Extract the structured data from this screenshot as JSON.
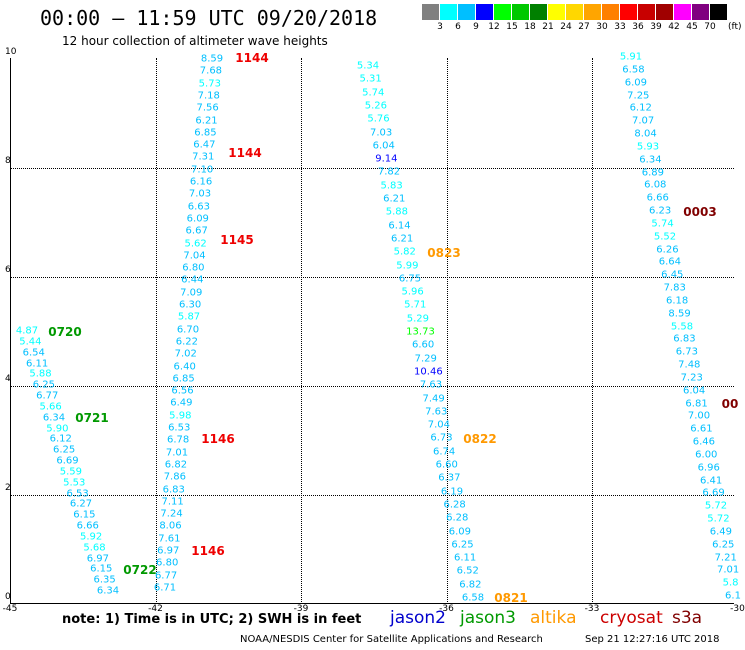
{
  "title": "00:00 – 11:59 UTC 09/20/2018",
  "subtitle": "12 hour collection of altimeter wave heights",
  "color_scale": {
    "labels": [
      "3",
      "6",
      "9",
      "12",
      "15",
      "18",
      "21",
      "24",
      "27",
      "30",
      "33",
      "36",
      "39",
      "42",
      "45",
      "70"
    ],
    "unit": "(ft)",
    "colors": [
      "#808080",
      "#00ffff",
      "#00bfff",
      "#0000ff",
      "#00ff00",
      "#00c800",
      "#008000",
      "#ffff00",
      "#ffd700",
      "#ffa500",
      "#ff8000",
      "#ff0000",
      "#c80000",
      "#a00000",
      "#ff00ff",
      "#800080",
      "#000000"
    ]
  },
  "note": "note: 1) Time is in UTC; 2) SWH is in feet",
  "legend": [
    {
      "name": "jason2",
      "color": "#0000cc"
    },
    {
      "name": "jason3",
      "color": "#009900"
    },
    {
      "name": "altika",
      "color": "#ff9900"
    },
    {
      "name": "cryosat",
      "color": "#cc0000"
    },
    {
      "name": "s3a",
      "color": "#800000"
    }
  ],
  "footer": "NOAA/NESDIS Center for Satellite Applications and Research",
  "footer_time": "Sep 21 12:27:16 UTC 2018",
  "axes": {
    "x_ticks": [
      "-45",
      "-42",
      "-39",
      "-36",
      "-33",
      "-30"
    ],
    "y_ticks": [
      "0",
      "2",
      "4",
      "6",
      "8",
      "10"
    ]
  },
  "tracks": [
    {
      "id": "t1",
      "values": [
        "4.87",
        "5.44",
        "6.54",
        "6.11",
        "5.88",
        "6.25",
        "6.77",
        "5.66",
        "6.34",
        "5.90",
        "6.12",
        "6.25",
        "6.69",
        "5.59",
        "5.53",
        "6.53",
        "6.27",
        "6.15",
        "6.66",
        "5.92",
        "5.68",
        "6.97",
        "6.15",
        "6.35",
        "6.34"
      ],
      "colors": [
        "#00ffff",
        "#00ffff",
        "#00bfff",
        "#00bfff",
        "#00ffff",
        "#00bfff",
        "#00bfff",
        "#00ffff",
        "#00bfff",
        "#00ffff",
        "#00bfff",
        "#00bfff",
        "#00bfff",
        "#00ffff",
        "#00ffff",
        "#00bfff",
        "#00bfff",
        "#00bfff",
        "#00bfff",
        "#00ffff",
        "#00ffff",
        "#00bfff",
        "#00bfff",
        "#00bfff",
        "#00bfff"
      ]
    },
    {
      "id": "t2",
      "values": [
        "8.59",
        "7.68",
        "5.73",
        "7.18",
        "7.56",
        "6.21",
        "6.85",
        "6.47",
        "7.31",
        "7.10",
        "6.16",
        "7.03",
        "6.63",
        "6.09",
        "6.67",
        "5.62",
        "7.04",
        "6.80",
        "6.44",
        "7.09",
        "6.30",
        "5.87",
        "6.70",
        "6.22",
        "7.02",
        "6.40",
        "6.85",
        "6.56",
        "6.49",
        "5.98",
        "6.53",
        "6.78",
        "7.01",
        "6.82",
        "7.86",
        "6.83",
        "7.11",
        "7.24",
        "8.06",
        "7.61",
        "6.97",
        "6.80",
        "6.77",
        "6.71"
      ],
      "colors": [
        "#00bfff",
        "#00bfff",
        "#00ffff",
        "#00bfff",
        "#00bfff",
        "#00bfff",
        "#00bfff",
        "#00bfff",
        "#00bfff",
        "#00bfff",
        "#00bfff",
        "#00bfff",
        "#00bfff",
        "#00bfff",
        "#00bfff",
        "#00ffff",
        "#00bfff",
        "#00bfff",
        "#00bfff",
        "#00bfff",
        "#00bfff",
        "#00ffff",
        "#00bfff",
        "#00bfff",
        "#00bfff",
        "#00bfff",
        "#00bfff",
        "#00bfff",
        "#00bfff",
        "#00ffff",
        "#00bfff",
        "#00bfff",
        "#00bfff",
        "#00bfff",
        "#00bfff",
        "#00bfff",
        "#00bfff",
        "#00bfff",
        "#00bfff",
        "#00bfff",
        "#00bfff",
        "#00bfff",
        "#00bfff",
        "#00bfff"
      ]
    },
    {
      "id": "t3",
      "values": [
        "5.34",
        "5.31",
        "5.74",
        "5.26",
        "5.76",
        "7.03",
        "6.04",
        "9.14",
        "7.82",
        "5.83",
        "6.21",
        "5.88",
        "6.14",
        "6.21",
        "5.82",
        "5.99",
        "6.75",
        "5.96",
        "5.71",
        "5.29",
        "13.73",
        "6.60",
        "7.29",
        "10.46",
        "7.63",
        "7.49",
        "7.63",
        "7.04",
        "6.73",
        "6.74",
        "6.60",
        "6.37",
        "6.19",
        "6.28",
        "6.28",
        "6.09",
        "6.25",
        "6.11",
        "6.52",
        "6.82",
        "6.58"
      ],
      "colors": [
        "#00ffff",
        "#00ffff",
        "#00ffff",
        "#00ffff",
        "#00ffff",
        "#00bfff",
        "#00bfff",
        "#0000ff",
        "#00bfff",
        "#00ffff",
        "#00bfff",
        "#00ffff",
        "#00bfff",
        "#00bfff",
        "#00ffff",
        "#00ffff",
        "#00bfff",
        "#00ffff",
        "#00ffff",
        "#00ffff",
        "#00ff00",
        "#00bfff",
        "#00bfff",
        "#0000ff",
        "#00bfff",
        "#00bfff",
        "#00bfff",
        "#00bfff",
        "#00bfff",
        "#00bfff",
        "#00bfff",
        "#00bfff",
        "#00bfff",
        "#00bfff",
        "#00bfff",
        "#00bfff",
        "#00bfff",
        "#00bfff",
        "#00bfff",
        "#00bfff",
        "#00bfff"
      ]
    },
    {
      "id": "t4",
      "values": [
        "5.91",
        "6.58",
        "6.09",
        "7.25",
        "6.12",
        "7.07",
        "8.04",
        "5.93",
        "6.34",
        "6.89",
        "6.08",
        "6.66",
        "6.23",
        "5.74",
        "5.52",
        "6.26",
        "6.64",
        "6.45",
        "7.83",
        "6.18",
        "8.59",
        "5.58",
        "6.83",
        "6.73",
        "7.48",
        "7.23",
        "6.04",
        "6.81",
        "7.00",
        "6.61",
        "6.46",
        "6.00",
        "6.96",
        "6.41",
        "6.69",
        "5.72",
        "5.72",
        "6.49",
        "6.25",
        "7.21",
        "7.01",
        "5.8",
        "6.1"
      ],
      "colors": [
        "#00ffff",
        "#00bfff",
        "#00bfff",
        "#00bfff",
        "#00bfff",
        "#00bfff",
        "#00bfff",
        "#00ffff",
        "#00bfff",
        "#00bfff",
        "#00bfff",
        "#00bfff",
        "#00bfff",
        "#00ffff",
        "#00ffff",
        "#00bfff",
        "#00bfff",
        "#00bfff",
        "#00bfff",
        "#00bfff",
        "#00bfff",
        "#00ffff",
        "#00bfff",
        "#00bfff",
        "#00bfff",
        "#00bfff",
        "#00bfff",
        "#00bfff",
        "#00bfff",
        "#00bfff",
        "#00bfff",
        "#00bfff",
        "#00bfff",
        "#00bfff",
        "#00bfff",
        "#00ffff",
        "#00ffff",
        "#00bfff",
        "#00bfff",
        "#00bfff",
        "#00bfff",
        "#00ffff",
        "#00bfff"
      ]
    }
  ],
  "time_labels": [
    {
      "text": "1144",
      "color": "#ee0000"
    },
    {
      "text": "1144",
      "color": "#ee0000"
    },
    {
      "text": "1145",
      "color": "#ee0000"
    },
    {
      "text": "1146",
      "color": "#ee0000"
    },
    {
      "text": "1146",
      "color": "#ee0000"
    },
    {
      "text": "0720",
      "color": "#009900"
    },
    {
      "text": "0721",
      "color": "#009900"
    },
    {
      "text": "0722",
      "color": "#009900"
    },
    {
      "text": "0823",
      "color": "#ff9900"
    },
    {
      "text": "0822",
      "color": "#ff9900"
    },
    {
      "text": "0821",
      "color": "#ff9900"
    },
    {
      "text": "0003",
      "color": "#800000"
    },
    {
      "text": "00",
      "color": "#800000"
    }
  ]
}
